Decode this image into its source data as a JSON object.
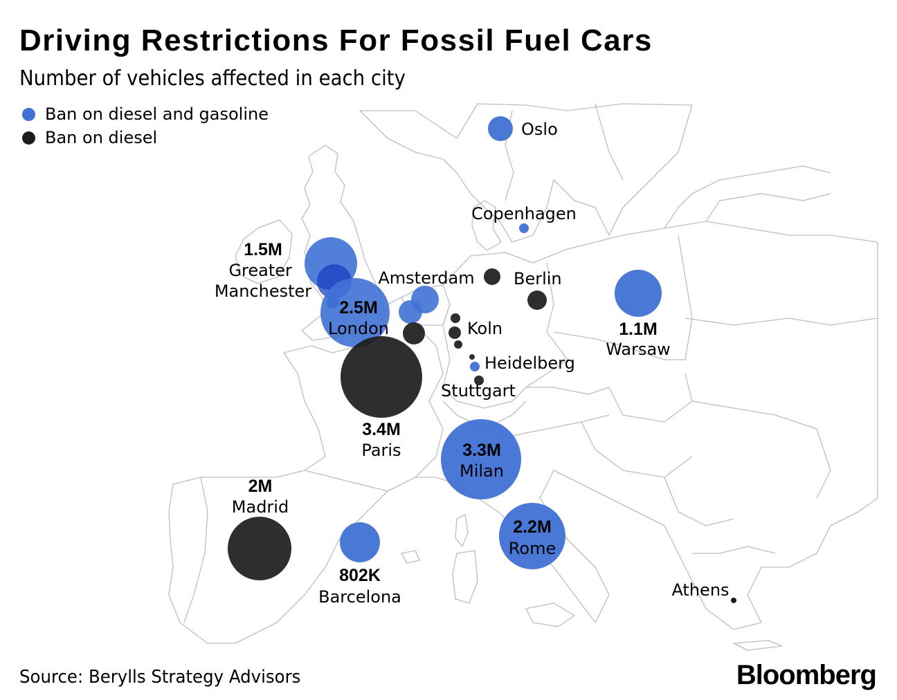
{
  "title": "Driving Restrictions For Fossil Fuel Cars",
  "subtitle": "Number of vehicles affected in each city",
  "legend": {
    "items": [
      {
        "label": "Ban on diesel and gasoline",
        "color": "#3f71d4"
      },
      {
        "label": "Ban on diesel",
        "color": "#1c1c1c"
      }
    ]
  },
  "colors": {
    "both": "#3f71d4",
    "diesel": "#1c1c1c",
    "border": "#bdbdbd"
  },
  "source": "Source: Berylls Strategy Advisors",
  "logo": "Bloomberg",
  "cities": [
    {
      "name": "Oslo",
      "ban": "both"
    },
    {
      "name": "Copenhagen",
      "ban": "both"
    },
    {
      "name": "Greater Manchester",
      "value": "1.5M",
      "ban": "both"
    },
    {
      "name": "London",
      "value": "2.5M",
      "ban": "both"
    },
    {
      "name": "Amsterdam",
      "ban": "both"
    },
    {
      "name": "Berlin",
      "ban": "diesel"
    },
    {
      "name": "Koln",
      "ban": "diesel"
    },
    {
      "name": "Heidelberg",
      "ban": "both"
    },
    {
      "name": "Stuttgart",
      "ban": "diesel"
    },
    {
      "name": "Warsaw",
      "value": "1.1M",
      "ban": "both"
    },
    {
      "name": "Paris",
      "value": "3.4M",
      "ban": "diesel"
    },
    {
      "name": "Milan",
      "value": "3.3M",
      "ban": "both"
    },
    {
      "name": "Madrid",
      "value": "2M",
      "ban": "diesel"
    },
    {
      "name": "Barcelona",
      "value": "802K",
      "ban": "both"
    },
    {
      "name": "Rome",
      "value": "2.2M",
      "ban": "both"
    },
    {
      "name": "Athens",
      "ban": "diesel"
    }
  ]
}
